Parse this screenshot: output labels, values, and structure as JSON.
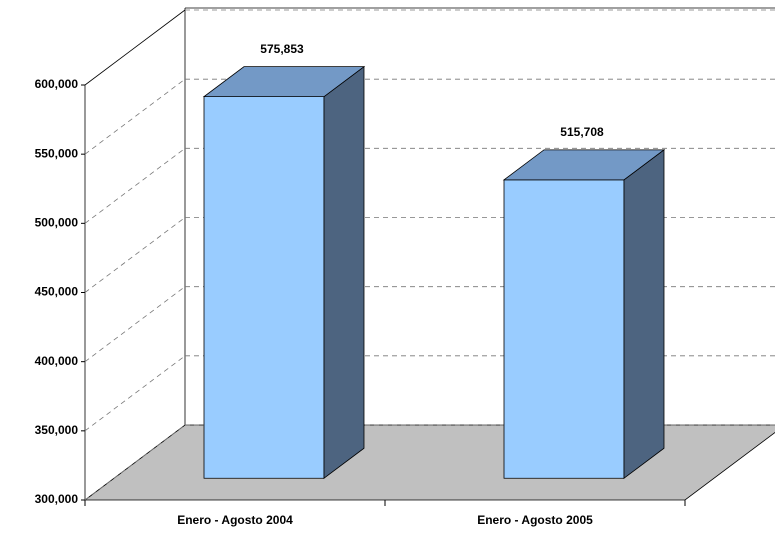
{
  "chart_data": {
    "type": "bar3d",
    "categories": [
      "Enero - Agosto 2004",
      "Enero - Agosto 2005"
    ],
    "values": [
      575853,
      515708
    ],
    "value_labels": [
      "575,853",
      "515,708"
    ],
    "colors": {
      "front": "#99ccff",
      "top": "#7399c6",
      "side": "#4d6480",
      "floor": "#c0c0c0"
    },
    "ylim": [
      300000,
      600000
    ],
    "yticks": [
      {
        "value": 300000,
        "label": "300,000"
      },
      {
        "value": 350000,
        "label": "350,000"
      },
      {
        "value": 400000,
        "label": "400,000"
      },
      {
        "value": 450000,
        "label": "450,000"
      },
      {
        "value": 500000,
        "label": "500,000"
      },
      {
        "value": 550000,
        "label": "550,000"
      },
      {
        "value": 600000,
        "label": "600,000"
      }
    ],
    "grid": true
  }
}
